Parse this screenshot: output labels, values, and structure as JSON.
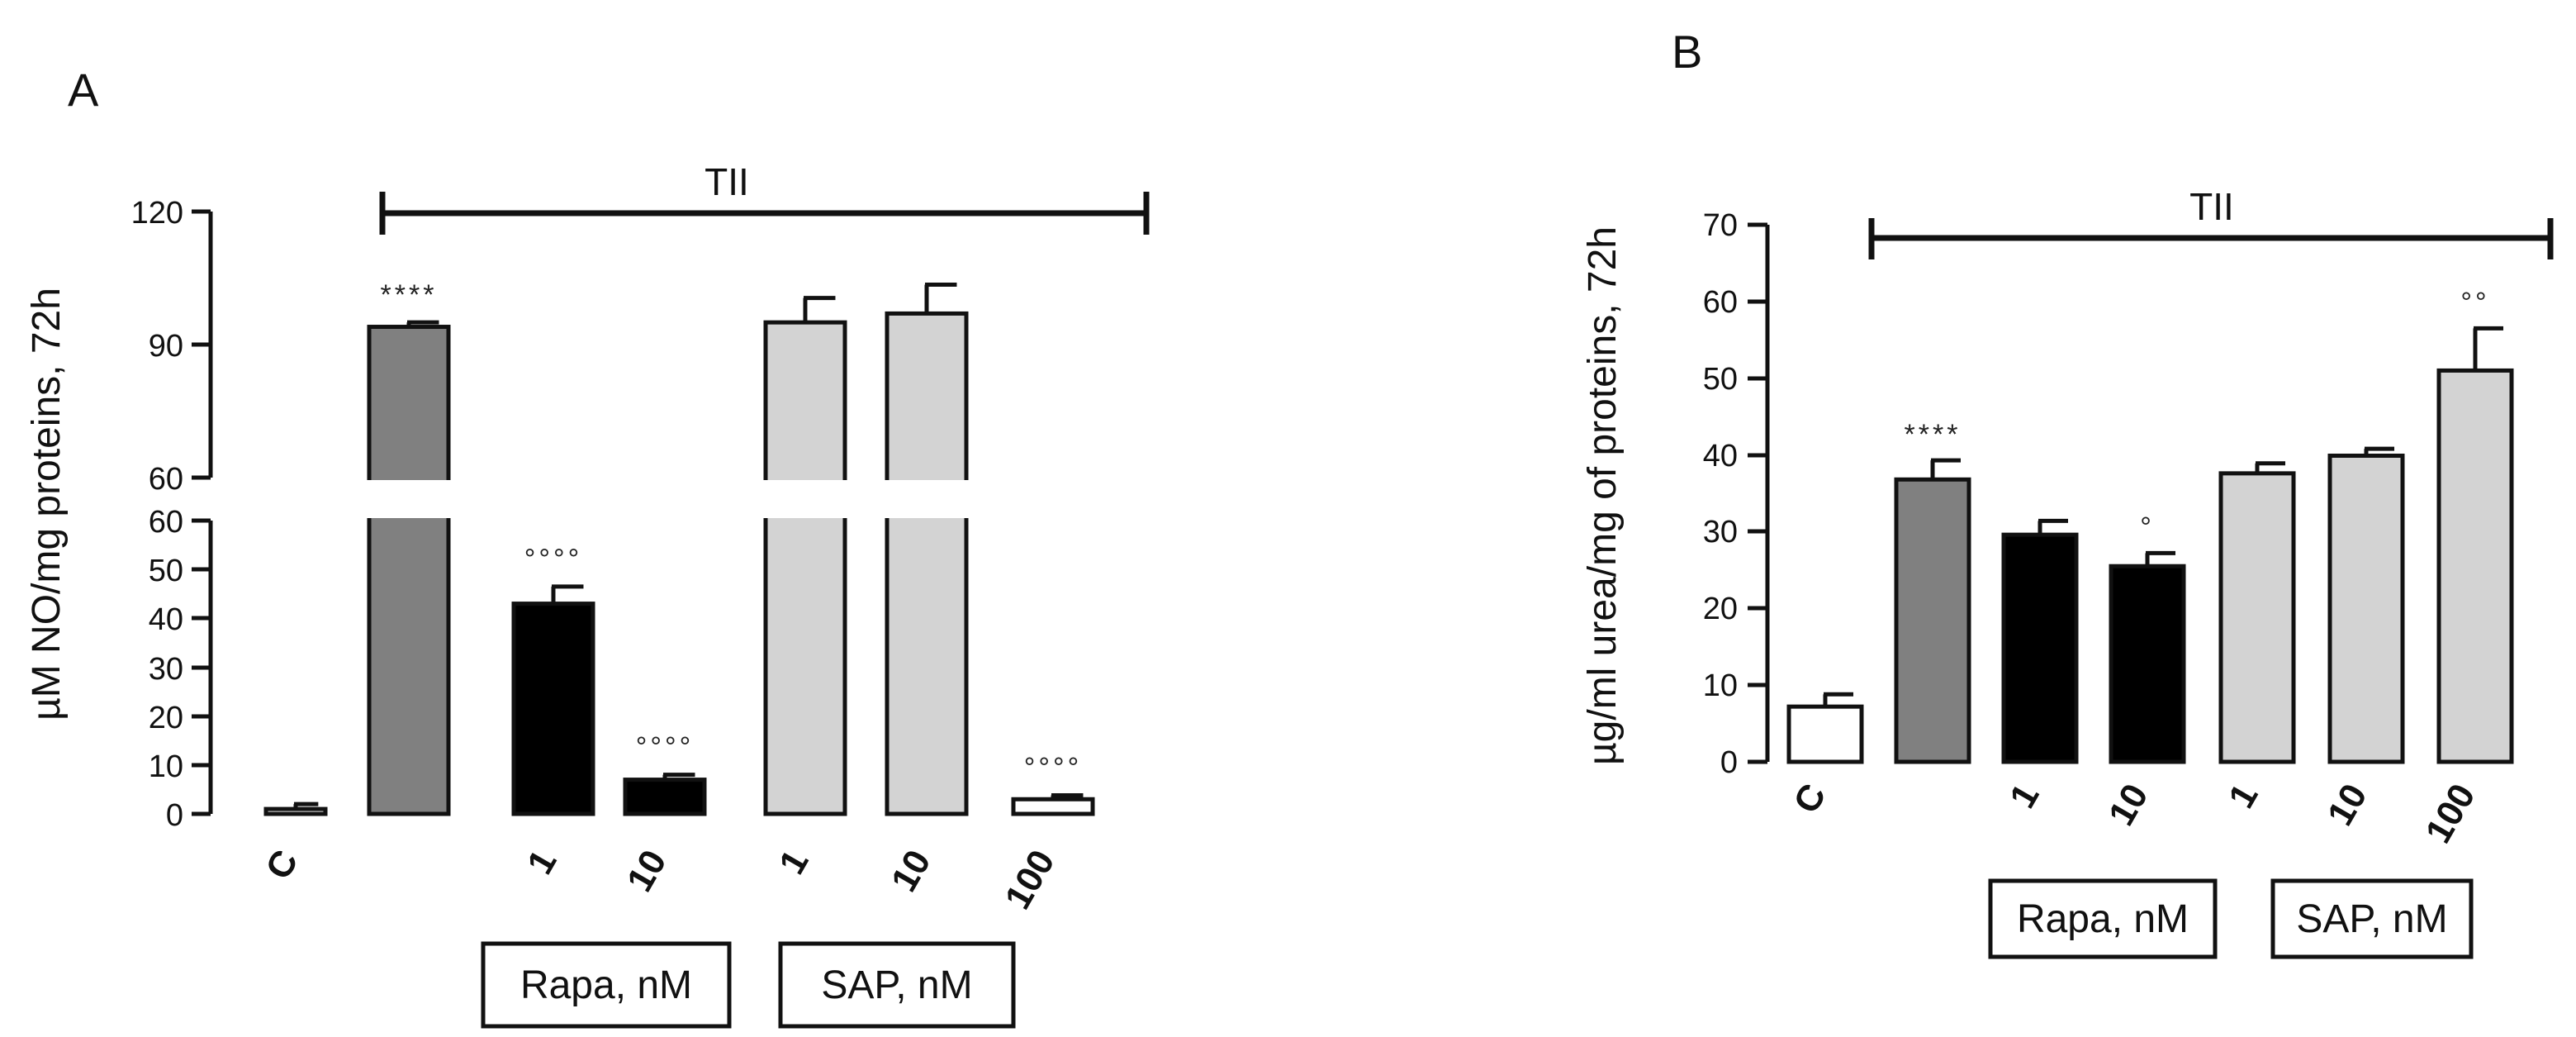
{
  "chart_data": [
    {
      "type": "bar",
      "panel_label": "A",
      "ylabel": "µM NO/mg proteins, 72h",
      "y_axis_break": {
        "lower_range": [
          0,
          60
        ],
        "upper_range": [
          60,
          120
        ]
      },
      "lower_ticks": [
        "0",
        "10",
        "20",
        "30",
        "40",
        "50",
        "60"
      ],
      "upper_ticks": [
        "60",
        "90",
        "120"
      ],
      "categories": [
        "C",
        "",
        "1",
        "10",
        "1",
        "10",
        "100"
      ],
      "values": [
        1,
        94,
        43,
        7,
        95,
        97,
        3
      ],
      "errors": [
        1,
        1,
        3.5,
        1,
        5.5,
        6.5,
        0.8
      ],
      "bar_colors": [
        "#ffffff",
        "#808080",
        "#000000",
        "#000000",
        "#d3d3d3",
        "#d3d3d3",
        "#ffffff"
      ],
      "significance": [
        "",
        "****",
        "oooo",
        "oooo",
        "",
        "",
        "oooo"
      ],
      "bracket_label": "TII",
      "group_labels": [
        "Rapa, nM",
        "SAP, nM"
      ]
    },
    {
      "type": "bar",
      "panel_label": "B",
      "ylabel": "µg/ml urea/mg of proteins, 72h",
      "ylim": [
        0,
        70
      ],
      "ticks": [
        "0",
        "10",
        "20",
        "30",
        "40",
        "50",
        "60",
        "70"
      ],
      "categories": [
        "C",
        "",
        "1",
        "10",
        "1",
        "10",
        "100"
      ],
      "values": [
        7.2,
        36.8,
        29.6,
        25.5,
        37.6,
        39.9,
        51
      ],
      "errors": [
        1.6,
        2.5,
        1.8,
        1.7,
        1.3,
        0.9,
        5.5
      ],
      "bar_colors": [
        "#ffffff",
        "#808080",
        "#000000",
        "#000000",
        "#d3d3d3",
        "#d3d3d3",
        "#d3d3d3"
      ],
      "significance": [
        "",
        "****",
        "",
        "o",
        "",
        "",
        "oo"
      ],
      "bracket_label": "TII",
      "group_labels": [
        "Rapa, nM",
        "SAP, nM"
      ]
    }
  ]
}
